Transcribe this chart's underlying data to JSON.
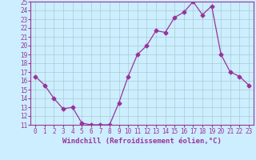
{
  "x": [
    0,
    1,
    2,
    3,
    4,
    5,
    6,
    7,
    8,
    9,
    10,
    11,
    12,
    13,
    14,
    15,
    16,
    17,
    18,
    19,
    20,
    21,
    22,
    23
  ],
  "y": [
    16.5,
    15.5,
    14.0,
    12.8,
    13.0,
    11.2,
    11.0,
    11.0,
    11.0,
    13.5,
    16.5,
    19.0,
    20.0,
    21.7,
    21.5,
    23.2,
    23.8,
    25.0,
    23.5,
    24.5,
    19.0,
    17.0,
    16.5,
    15.5
  ],
  "line_color": "#993399",
  "marker": "D",
  "marker_size": 2.5,
  "bg_color": "#cceeff",
  "grid_color": "#aacccc",
  "xlabel": "Windchill (Refroidissement éolien,°C)",
  "xlabel_fontsize": 6.5,
  "tick_fontsize": 5.5,
  "ylim": [
    11,
    25
  ],
  "xlim": [
    -0.5,
    23.5
  ],
  "yticks": [
    11,
    12,
    13,
    14,
    15,
    16,
    17,
    18,
    19,
    20,
    21,
    22,
    23,
    24,
    25
  ],
  "xticks": [
    0,
    1,
    2,
    3,
    4,
    5,
    6,
    7,
    8,
    9,
    10,
    11,
    12,
    13,
    14,
    15,
    16,
    17,
    18,
    19,
    20,
    21,
    22,
    23
  ]
}
